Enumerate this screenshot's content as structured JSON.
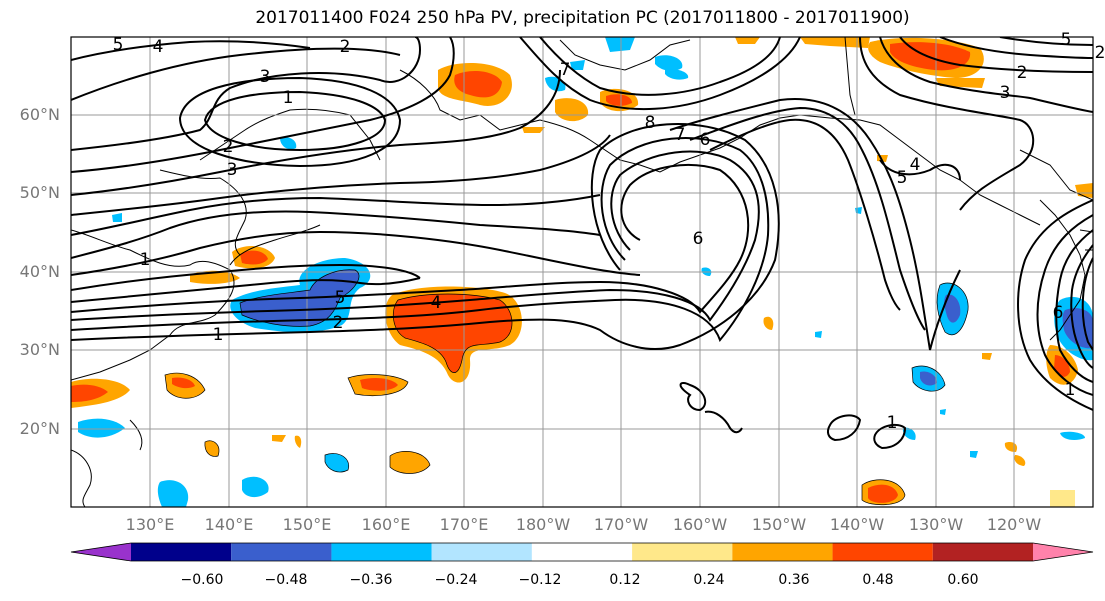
{
  "title": "2017011400 F024 250 hPa PV, precipitation PC (2017011800 - 2017011900)",
  "lat_labels": [
    "60°N",
    "50°N",
    "40°N",
    "30°N",
    "20°N"
  ],
  "lon_labels": [
    "130°E",
    "140°E",
    "150°E",
    "160°E",
    "170°E",
    "180°W",
    "170°W",
    "160°W",
    "150°W",
    "140°W",
    "130°W",
    "120°W"
  ],
  "colorbar": {
    "ticks": [
      "−0.60",
      "−0.48",
      "−0.36",
      "−0.24",
      "−0.12",
      "0.12",
      "0.24",
      "0.36",
      "0.48",
      "0.60"
    ],
    "colors": [
      "#9932cc",
      "#00008b",
      "#3a5fcd",
      "#00bfff",
      "#b2e5ff",
      "#ffffff",
      "#ffe88a",
      "#ffa500",
      "#ff4500",
      "#b22222",
      "#ff82ab"
    ]
  },
  "contour_labels": [
    "5",
    "4",
    "2",
    "3",
    "1",
    "3",
    "2",
    "7",
    "8",
    "7",
    "6",
    "6",
    "5",
    "4",
    "1",
    "2",
    "1",
    "6",
    "5",
    "4",
    "2",
    "3",
    "5",
    "2",
    "1",
    "1"
  ]
}
